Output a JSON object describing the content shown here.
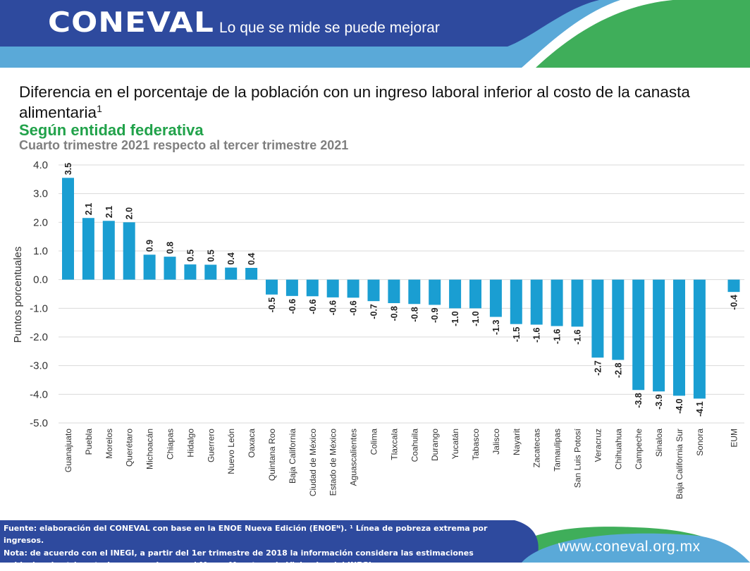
{
  "header": {
    "logo": "CONEVAL",
    "tagline": "Lo que se mide se puede mejorar",
    "colors": {
      "dark_blue": "#2e4a9e",
      "light_blue": "#5aa9d8",
      "green": "#3fae5a"
    }
  },
  "titles": {
    "main": "Diferencia en el porcentaje de la población con un ingreso laboral inferior al costo de la canasta alimentaria",
    "main_sup": "1",
    "subtitle": "Según entidad federativa",
    "subtitle2": "Cuarto trimestre 2021 respecto al tercer trimestre 2021"
  },
  "chart_data": {
    "type": "bar",
    "ylabel": "Puntos porcentuales",
    "xlabel": "",
    "ylim": [
      -5.0,
      4.0
    ],
    "yticks": [
      "4.0",
      "3.0",
      "2.0",
      "1.0",
      "0.0",
      "-1.0",
      "-2.0",
      "-3.0",
      "-4.0",
      "-5.0"
    ],
    "grid": true,
    "bar_color": "#1a9ed2",
    "categories": [
      "Guanajuato",
      "Puebla",
      "Morelos",
      "Querétaro",
      "Michoacán",
      "Chiapas",
      "Hidalgo",
      "Guerrero",
      "Nuevo León",
      "Oaxaca",
      "Quintana Roo",
      "Baja California",
      "Ciudad de México",
      "Estado de México",
      "Aguascalientes",
      "Colima",
      "Tlaxcala",
      "Coahuila",
      "Durango",
      "Yucatán",
      "Tabasco",
      "Jalisco",
      "Nayarit",
      "Zacatecas",
      "Tamaulipas",
      "San Luis Potosí",
      "Veracruz",
      "Chihuahua",
      "Campeche",
      "Sinaloa",
      "Baja California Sur",
      "Sonora",
      "EUM"
    ],
    "values": [
      3.55,
      2.15,
      2.05,
      2.0,
      0.87,
      0.8,
      0.53,
      0.52,
      0.42,
      0.41,
      -0.52,
      -0.57,
      -0.58,
      -0.62,
      -0.63,
      -0.75,
      -0.82,
      -0.85,
      -0.88,
      -1.0,
      -1.0,
      -1.3,
      -1.55,
      -1.57,
      -1.62,
      -1.64,
      -2.72,
      -2.8,
      -3.85,
      -3.9,
      -4.05,
      -4.15,
      -0.43
    ],
    "labels": [
      "3.5",
      "2.1",
      "2.1",
      "2.0",
      "0.9",
      "0.8",
      "0.5",
      "0.5",
      "0.4",
      "0.4",
      "-0.5",
      "-0.6",
      "-0.6",
      "-0.6",
      "-0.6",
      "-0.7",
      "-0.8",
      "-0.8",
      "-0.9",
      "-1.0",
      "-1.0",
      "-1.3",
      "-1.5",
      "-1.6",
      "-1.6",
      "-1.6",
      "-2.7",
      "-2.8",
      "-3.8",
      "-3.9",
      "-4.0",
      "-4.1",
      "-0.4"
    ]
  },
  "footer": {
    "source_line1": "Fuente: elaboración del CONEVAL con base en la ENOE Nueva Edición (ENOEᴺ). ¹ Línea de pobreza extrema por ingresos.",
    "source_line2": "Nota: de acuerdo con el INEGI, a partir del 1er trimestre de 2018 la información considera las estimaciones",
    "source_line3": "poblacionales trimestrales generadas por el Marco Muestreo de Viviendas del INEGI.",
    "url": "www.coneval.org.mx"
  }
}
